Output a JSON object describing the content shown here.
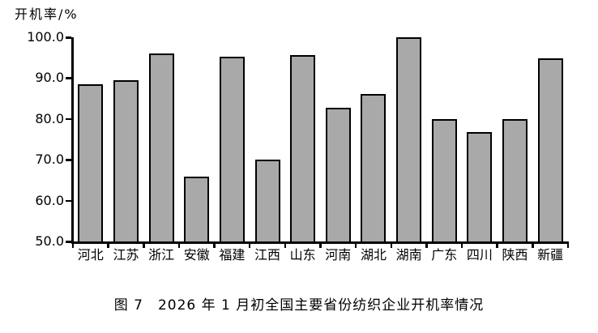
{
  "chart_data": {
    "type": "bar",
    "title": "图 7　2026 年 1 月初全国主要省份纺织企业开机率情况",
    "ylabel": "开机率/%",
    "xlabel": "",
    "categories": [
      "河北",
      "江苏",
      "浙江",
      "安徽",
      "福建",
      "江西",
      "山东",
      "河南",
      "湖北",
      "湖南",
      "广东",
      "四川",
      "陕西",
      "新疆"
    ],
    "values": [
      88.5,
      89.5,
      96.0,
      65.8,
      95.2,
      70.0,
      95.6,
      82.8,
      86.2,
      100.0,
      80.0,
      76.8,
      80.0,
      94.9
    ],
    "ylim": [
      50,
      100
    ],
    "ytick_values": [
      50,
      60,
      70,
      80,
      90,
      100
    ],
    "ytick_labels": [
      "50.0",
      "60.0",
      "70.0",
      "80.0",
      "90.0",
      "100.0"
    ],
    "grid": false,
    "legend_position": "none",
    "bar_fill_color": "#a9a9a9",
    "bar_border_color": "#000000",
    "axis_color": "#000000"
  }
}
